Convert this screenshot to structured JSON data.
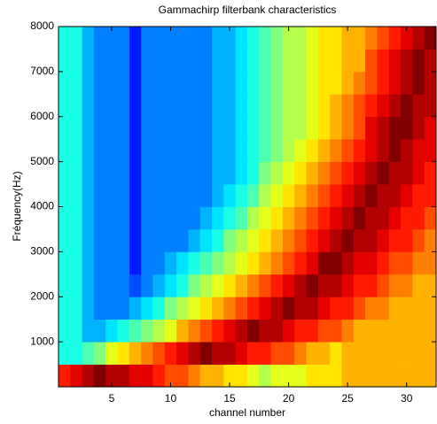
{
  "chart_data": {
    "type": "heatmap",
    "title": "Gammachirp filterbank characteristics",
    "xlabel": "channel number",
    "ylabel": "Fréquency(Hz)",
    "colormap": "jet",
    "clim": [
      0,
      20
    ],
    "xlim": [
      0.5,
      32.5
    ],
    "xticks": [
      5,
      10,
      15,
      20,
      25,
      30
    ],
    "ylim": [
      0,
      8000
    ],
    "yticks": [
      1000,
      2000,
      3000,
      4000,
      5000,
      6000,
      7000,
      8000
    ],
    "x": [
      1,
      2,
      3,
      4,
      5,
      6,
      7,
      8,
      9,
      10,
      11,
      12,
      13,
      14,
      15,
      16,
      17,
      18,
      19,
      20,
      21,
      22,
      23,
      24,
      25,
      26,
      27,
      28,
      29,
      30,
      31,
      32
    ],
    "y": [
      250,
      750,
      1250,
      1750,
      2250,
      2750,
      3250,
      3750,
      4250,
      4750,
      5250,
      5750,
      6250,
      6750,
      7250,
      7750
    ],
    "z": [
      [
        17,
        18,
        19,
        20,
        19,
        19,
        18,
        18,
        17,
        16,
        16,
        15,
        14,
        14,
        13,
        13,
        12,
        11,
        12,
        12,
        12,
        13,
        13,
        13,
        14,
        14,
        14,
        14,
        14,
        14,
        14,
        14
      ],
      [
        8,
        8,
        9,
        10,
        12,
        13,
        14,
        15,
        16,
        17,
        18,
        19,
        20,
        19,
        19,
        18,
        17,
        17,
        16,
        16,
        15,
        14,
        14,
        13,
        14,
        14,
        14,
        14,
        14,
        14,
        14,
        14
      ],
      [
        8,
        8,
        6,
        6,
        7,
        8,
        9,
        10,
        11,
        12,
        14,
        15,
        16,
        17,
        18,
        19,
        20,
        19,
        19,
        18,
        17,
        17,
        16,
        16,
        15,
        14,
        14,
        14,
        14,
        14,
        14,
        14
      ],
      [
        8,
        8,
        6,
        5,
        5,
        5,
        6,
        7,
        8,
        10,
        11,
        12,
        13,
        14,
        15,
        16,
        17,
        18,
        19,
        20,
        19,
        19,
        18,
        17,
        17,
        16,
        15,
        15,
        14,
        14,
        14,
        14
      ],
      [
        8,
        8,
        6,
        5,
        5,
        5,
        4,
        5,
        6,
        7,
        8,
        10,
        11,
        12,
        13,
        14,
        15,
        16,
        17,
        18,
        19,
        20,
        19,
        19,
        18,
        17,
        17,
        16,
        15,
        15,
        14,
        14
      ],
      [
        8,
        8,
        6,
        5,
        5,
        5,
        3,
        5,
        5,
        6,
        7,
        8,
        9,
        10,
        11,
        12,
        13,
        14,
        15,
        16,
        17,
        18,
        20,
        20,
        19,
        18,
        18,
        17,
        16,
        16,
        15,
        15
      ],
      [
        8,
        8,
        6,
        5,
        5,
        5,
        3,
        5,
        5,
        5,
        5,
        6,
        7,
        8,
        10,
        11,
        12,
        13,
        14,
        15,
        16,
        17,
        18,
        19,
        20,
        19,
        19,
        18,
        17,
        17,
        16,
        15
      ],
      [
        8,
        8,
        6,
        5,
        5,
        5,
        3,
        5,
        5,
        5,
        5,
        5,
        6,
        7,
        8,
        9,
        11,
        12,
        13,
        14,
        15,
        16,
        17,
        18,
        19,
        20,
        19,
        19,
        18,
        17,
        17,
        16
      ],
      [
        8,
        8,
        6,
        5,
        5,
        5,
        3,
        5,
        5,
        5,
        5,
        5,
        5,
        6,
        7,
        8,
        9,
        11,
        12,
        13,
        14,
        15,
        16,
        17,
        18,
        19,
        20,
        19,
        19,
        18,
        17,
        17
      ],
      [
        8,
        8,
        6,
        5,
        5,
        5,
        3,
        5,
        5,
        5,
        5,
        5,
        5,
        6,
        6,
        7,
        8,
        10,
        11,
        12,
        13,
        14,
        15,
        16,
        17,
        18,
        19,
        20,
        19,
        19,
        18,
        17
      ],
      [
        8,
        8,
        6,
        5,
        5,
        5,
        3,
        5,
        5,
        5,
        5,
        5,
        5,
        6,
        6,
        7,
        8,
        9,
        10,
        11,
        12,
        13,
        14,
        15,
        16,
        17,
        18,
        19,
        20,
        19,
        18,
        18
      ],
      [
        8,
        8,
        6,
        5,
        5,
        5,
        3,
        5,
        5,
        5,
        5,
        5,
        5,
        6,
        6,
        7,
        8,
        9,
        10,
        11,
        11,
        12,
        13,
        14,
        15,
        16,
        18,
        19,
        20,
        20,
        19,
        18
      ],
      [
        8,
        8,
        6,
        5,
        5,
        5,
        3,
        5,
        5,
        5,
        5,
        5,
        5,
        6,
        6,
        7,
        8,
        9,
        10,
        11,
        11,
        12,
        13,
        14,
        15,
        16,
        17,
        18,
        19,
        20,
        19,
        19
      ],
      [
        8,
        8,
        6,
        5,
        5,
        5,
        3,
        5,
        5,
        5,
        5,
        5,
        5,
        6,
        6,
        7,
        8,
        9,
        10,
        11,
        11,
        12,
        13,
        13,
        14,
        15,
        16,
        17,
        18,
        19,
        20,
        19
      ],
      [
        8,
        8,
        6,
        5,
        5,
        5,
        3,
        5,
        5,
        5,
        5,
        5,
        5,
        6,
        6,
        7,
        8,
        9,
        10,
        11,
        11,
        12,
        13,
        13,
        14,
        14,
        16,
        17,
        18,
        19,
        20,
        19
      ],
      [
        8,
        8,
        6,
        5,
        5,
        5,
        3,
        5,
        5,
        5,
        5,
        5,
        5,
        6,
        6,
        7,
        8,
        9,
        10,
        11,
        11,
        12,
        13,
        13,
        14,
        14,
        15,
        16,
        17,
        18,
        19,
        20
      ]
    ]
  }
}
